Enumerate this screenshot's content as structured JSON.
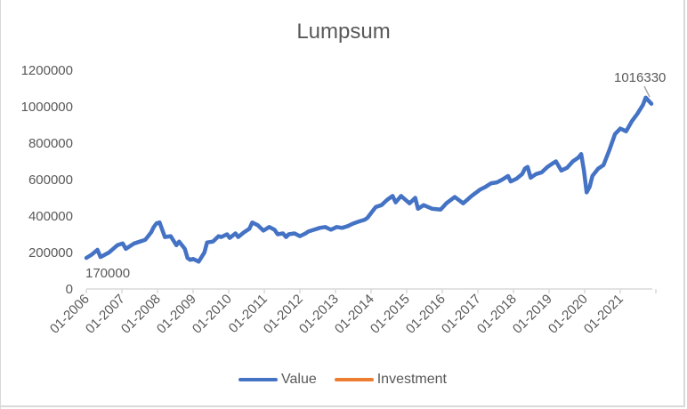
{
  "chart_data": {
    "type": "line",
    "title": "Lumpsum",
    "xlabel": "",
    "ylabel": "",
    "ylim": [
      0,
      1200000
    ],
    "yticks": [
      "0",
      "200000",
      "400000",
      "600000",
      "800000",
      "1000000",
      "1200000"
    ],
    "xticks": [
      "01-2006",
      "01-2007",
      "01-2008",
      "01-2009",
      "01-2010",
      "01-2011",
      "01-2012",
      "01-2013",
      "01-2014",
      "01-2015",
      "01-2016",
      "01-2017",
      "01-2018",
      "01-2019",
      "01-2020",
      "01-2021"
    ],
    "grid": false,
    "legend_position": "bottom",
    "annotations": [
      {
        "text": "170000",
        "at": "01-2006"
      },
      {
        "text": "1016330",
        "at": "end"
      }
    ],
    "series": [
      {
        "name": "Value",
        "color": "#4472c4",
        "points": [
          [
            "2006.00",
            170000
          ],
          [
            "2006.17",
            190000
          ],
          [
            "2006.33",
            215000
          ],
          [
            "2006.42",
            175000
          ],
          [
            "2006.67",
            200000
          ],
          [
            "2006.92",
            240000
          ],
          [
            "2007.08",
            250000
          ],
          [
            "2007.17",
            220000
          ],
          [
            "2007.42",
            250000
          ],
          [
            "2007.67",
            265000
          ],
          [
            "2007.75",
            270000
          ],
          [
            "2007.92",
            310000
          ],
          [
            "2008.00",
            340000
          ],
          [
            "2008.08",
            360000
          ],
          [
            "2008.17",
            365000
          ],
          [
            "2008.33",
            285000
          ],
          [
            "2008.50",
            290000
          ],
          [
            "2008.67",
            240000
          ],
          [
            "2008.75",
            260000
          ],
          [
            "2008.92",
            220000
          ],
          [
            "2009.00",
            170000
          ],
          [
            "2009.08",
            160000
          ],
          [
            "2009.17",
            165000
          ],
          [
            "2009.33",
            150000
          ],
          [
            "2009.50",
            200000
          ],
          [
            "2009.58",
            255000
          ],
          [
            "2009.75",
            260000
          ],
          [
            "2009.92",
            290000
          ],
          [
            "2010.00",
            285000
          ],
          [
            "2010.17",
            300000
          ],
          [
            "2010.25",
            280000
          ],
          [
            "2010.42",
            305000
          ],
          [
            "2010.50",
            285000
          ],
          [
            "2010.67",
            310000
          ],
          [
            "2010.83",
            330000
          ],
          [
            "2010.92",
            365000
          ],
          [
            "2011.08",
            350000
          ],
          [
            "2011.25",
            320000
          ],
          [
            "2011.42",
            340000
          ],
          [
            "2011.58",
            325000
          ],
          [
            "2011.67",
            300000
          ],
          [
            "2011.83",
            305000
          ],
          [
            "2011.92",
            285000
          ],
          [
            "2012.00",
            300000
          ],
          [
            "2012.17",
            305000
          ],
          [
            "2012.33",
            290000
          ],
          [
            "2012.50",
            305000
          ],
          [
            "2012.58",
            315000
          ],
          [
            "2012.75",
            325000
          ],
          [
            "2012.92",
            335000
          ],
          [
            "2013.08",
            340000
          ],
          [
            "2013.25",
            325000
          ],
          [
            "2013.42",
            340000
          ],
          [
            "2013.58",
            335000
          ],
          [
            "2013.75",
            345000
          ],
          [
            "2013.92",
            360000
          ],
          [
            "2014.08",
            370000
          ],
          [
            "2014.25",
            380000
          ],
          [
            "2014.33",
            390000
          ],
          [
            "2014.50",
            430000
          ],
          [
            "2014.58",
            450000
          ],
          [
            "2014.75",
            460000
          ],
          [
            "2014.92",
            490000
          ],
          [
            "2015.08",
            510000
          ],
          [
            "2015.17",
            475000
          ],
          [
            "2015.33",
            510000
          ],
          [
            "2015.58",
            470000
          ],
          [
            "2015.75",
            500000
          ],
          [
            "2015.83",
            440000
          ],
          [
            "2016.00",
            460000
          ],
          [
            "2016.25",
            440000
          ],
          [
            "2016.50",
            435000
          ],
          [
            "2016.67",
            470000
          ],
          [
            "2016.92",
            505000
          ],
          [
            "2017.17",
            470000
          ],
          [
            "2017.42",
            510000
          ],
          [
            "2017.67",
            545000
          ],
          [
            "2017.83",
            560000
          ],
          [
            "2018.00",
            580000
          ],
          [
            "2018.17",
            585000
          ],
          [
            "2018.33",
            600000
          ],
          [
            "2018.50",
            620000
          ],
          [
            "2018.58",
            590000
          ],
          [
            "2018.75",
            605000
          ],
          [
            "2018.92",
            630000
          ],
          [
            "2019.00",
            660000
          ],
          [
            "2019.08",
            670000
          ],
          [
            "2019.17",
            610000
          ],
          [
            "2019.33",
            630000
          ],
          [
            "2019.50",
            640000
          ],
          [
            "2019.67",
            670000
          ],
          [
            "2019.83",
            690000
          ],
          [
            "2019.92",
            700000
          ],
          [
            "2020.08",
            650000
          ],
          [
            "2020.25",
            665000
          ],
          [
            "2020.42",
            700000
          ],
          [
            "2020.58",
            720000
          ],
          [
            "2020.67",
            740000
          ],
          [
            "2020.75",
            650000
          ],
          [
            "2020.83",
            530000
          ],
          [
            "2020.92",
            560000
          ],
          [
            "2021.00",
            620000
          ],
          [
            "2021.17",
            660000
          ],
          [
            "2021.33",
            680000
          ],
          [
            "2021.50",
            760000
          ],
          [
            "2021.67",
            850000
          ],
          [
            "2021.83",
            880000
          ],
          [
            "2022.00",
            865000
          ],
          [
            "2022.17",
            920000
          ],
          [
            "2022.33",
            960000
          ],
          [
            "2022.50",
            1010000
          ],
          [
            "2022.58",
            1050000
          ],
          [
            "2022.75",
            1016330
          ]
        ]
      },
      {
        "name": "Investment",
        "color": "#ed7d31",
        "points": []
      }
    ]
  },
  "legend": {
    "items": [
      {
        "label": "Value",
        "color": "#4472c4"
      },
      {
        "label": "Investment",
        "color": "#ed7d31"
      }
    ]
  },
  "labels": {
    "start_value": "170000",
    "end_value": "1016330"
  }
}
